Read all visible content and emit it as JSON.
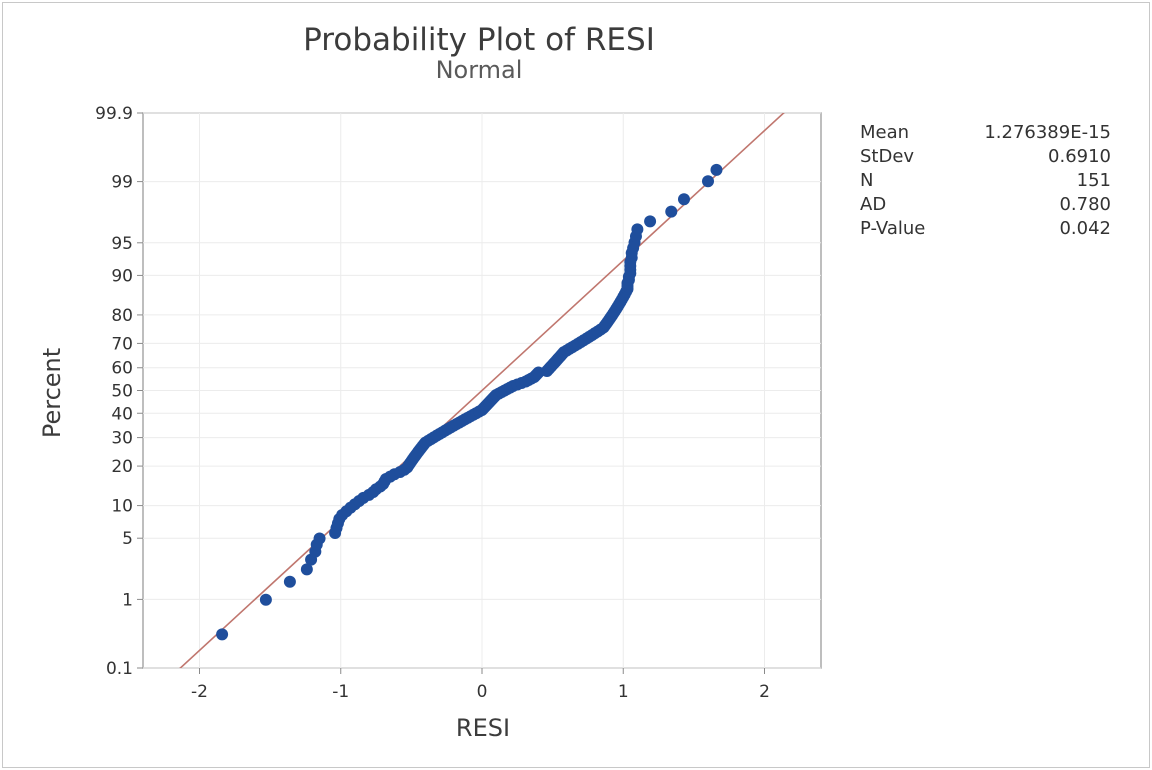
{
  "chart_data": {
    "type": "scatter",
    "title": "Probability Plot of RESI",
    "subtitle": "Normal",
    "xlabel": "RESI",
    "ylabel": "Percent",
    "xlim": [
      -2.4,
      2.4
    ],
    "x_ticks": [
      -2,
      -1,
      0,
      1,
      2
    ],
    "y_scale": "normal-probability",
    "y_ticks": [
      0.1,
      1,
      5,
      10,
      20,
      30,
      40,
      50,
      60,
      70,
      80,
      90,
      95,
      99,
      99.9
    ],
    "ylim": [
      0.1,
      99.9
    ],
    "grid": true,
    "fit_line": {
      "mean": 0.0,
      "stdev": 0.691
    },
    "point_color": "#1f4e9c",
    "line_color": "#c0766e",
    "points": [
      [
        -1.84,
        0.33
      ],
      [
        -1.53,
        0.99
      ],
      [
        -1.36,
        1.66
      ],
      [
        -1.24,
        2.32
      ],
      [
        -1.21,
        2.98
      ],
      [
        -1.18,
        3.64
      ],
      [
        -1.17,
        4.3
      ],
      [
        -1.15,
        4.97
      ],
      [
        -1.04,
        5.63
      ],
      [
        -1.03,
        6.29
      ],
      [
        -1.02,
        6.95
      ],
      [
        -1.01,
        7.62
      ],
      [
        -0.99,
        8.28
      ],
      [
        -0.96,
        8.94
      ],
      [
        -0.93,
        9.6
      ],
      [
        -0.9,
        10.26
      ],
      [
        -0.87,
        10.93
      ],
      [
        -0.84,
        11.59
      ],
      [
        -0.8,
        12.25
      ],
      [
        -0.77,
        12.91
      ],
      [
        -0.75,
        13.58
      ],
      [
        -0.72,
        14.24
      ],
      [
        -0.7,
        14.9
      ],
      [
        -0.69,
        15.56
      ],
      [
        -0.68,
        16.23
      ],
      [
        -0.65,
        16.89
      ],
      [
        -0.62,
        17.55
      ],
      [
        -0.58,
        18.21
      ],
      [
        -0.55,
        18.87
      ],
      [
        -0.53,
        19.54
      ],
      [
        -0.52,
        20.2
      ],
      [
        -0.51,
        20.86
      ],
      [
        -0.5,
        21.52
      ],
      [
        -0.49,
        22.19
      ],
      [
        -0.48,
        22.85
      ],
      [
        -0.47,
        23.51
      ],
      [
        -0.46,
        24.17
      ],
      [
        -0.45,
        24.83
      ],
      [
        -0.44,
        25.5
      ],
      [
        -0.43,
        26.16
      ],
      [
        -0.42,
        26.82
      ],
      [
        -0.41,
        27.48
      ],
      [
        -0.4,
        28.15
      ],
      [
        -0.38,
        28.81
      ],
      [
        -0.36,
        29.47
      ],
      [
        -0.34,
        30.13
      ],
      [
        -0.32,
        30.79
      ],
      [
        -0.3,
        31.46
      ],
      [
        -0.28,
        32.12
      ],
      [
        -0.26,
        32.78
      ],
      [
        -0.24,
        33.44
      ],
      [
        -0.22,
        34.11
      ],
      [
        -0.2,
        34.77
      ],
      [
        -0.18,
        35.43
      ],
      [
        -0.16,
        36.09
      ],
      [
        -0.14,
        36.75
      ],
      [
        -0.12,
        37.42
      ],
      [
        -0.1,
        38.08
      ],
      [
        -0.08,
        38.74
      ],
      [
        -0.06,
        39.4
      ],
      [
        -0.04,
        40.07
      ],
      [
        -0.02,
        40.73
      ],
      [
        0.0,
        41.39
      ],
      [
        0.01,
        42.05
      ],
      [
        0.02,
        42.72
      ],
      [
        0.03,
        43.38
      ],
      [
        0.04,
        44.04
      ],
      [
        0.05,
        44.7
      ],
      [
        0.06,
        45.36
      ],
      [
        0.07,
        46.03
      ],
      [
        0.08,
        46.69
      ],
      [
        0.09,
        47.35
      ],
      [
        0.1,
        48.01
      ],
      [
        0.12,
        48.68
      ],
      [
        0.14,
        49.34
      ],
      [
        0.16,
        50.0
      ],
      [
        0.18,
        50.66
      ],
      [
        0.2,
        51.32
      ],
      [
        0.22,
        51.99
      ],
      [
        0.25,
        52.65
      ],
      [
        0.28,
        53.31
      ],
      [
        0.31,
        53.97
      ],
      [
        0.33,
        54.64
      ],
      [
        0.35,
        55.3
      ],
      [
        0.37,
        55.96
      ],
      [
        0.38,
        56.62
      ],
      [
        0.39,
        57.28
      ],
      [
        0.4,
        57.95
      ],
      [
        0.46,
        58.61
      ],
      [
        0.47,
        59.27
      ],
      [
        0.48,
        59.93
      ],
      [
        0.49,
        60.6
      ],
      [
        0.5,
        61.26
      ],
      [
        0.51,
        61.92
      ],
      [
        0.52,
        62.58
      ],
      [
        0.53,
        63.25
      ],
      [
        0.54,
        63.91
      ],
      [
        0.55,
        64.57
      ],
      [
        0.56,
        65.23
      ],
      [
        0.57,
        65.89
      ],
      [
        0.58,
        66.56
      ],
      [
        0.6,
        67.22
      ],
      [
        0.62,
        67.88
      ],
      [
        0.64,
        68.54
      ],
      [
        0.66,
        69.21
      ],
      [
        0.68,
        69.87
      ],
      [
        0.7,
        70.53
      ],
      [
        0.72,
        71.19
      ],
      [
        0.74,
        71.85
      ],
      [
        0.76,
        72.52
      ],
      [
        0.78,
        73.18
      ],
      [
        0.8,
        73.84
      ],
      [
        0.82,
        74.5
      ],
      [
        0.84,
        75.17
      ],
      [
        0.86,
        75.83
      ],
      [
        0.87,
        76.49
      ],
      [
        0.88,
        77.15
      ],
      [
        0.89,
        77.81
      ],
      [
        0.9,
        78.48
      ],
      [
        0.91,
        79.14
      ],
      [
        0.92,
        79.8
      ],
      [
        0.93,
        80.46
      ],
      [
        0.94,
        81.13
      ],
      [
        0.95,
        81.79
      ],
      [
        0.96,
        82.45
      ],
      [
        0.97,
        83.11
      ],
      [
        0.98,
        83.77
      ],
      [
        0.99,
        84.44
      ],
      [
        1.0,
        85.1
      ],
      [
        1.01,
        85.76
      ],
      [
        1.02,
        86.42
      ],
      [
        1.03,
        87.09
      ],
      [
        1.03,
        87.75
      ],
      [
        1.03,
        88.41
      ],
      [
        1.04,
        89.07
      ],
      [
        1.04,
        89.74
      ],
      [
        1.05,
        90.4
      ],
      [
        1.05,
        91.06
      ],
      [
        1.05,
        91.72
      ],
      [
        1.05,
        92.38
      ],
      [
        1.06,
        93.05
      ],
      [
        1.06,
        93.71
      ],
      [
        1.07,
        94.37
      ],
      [
        1.08,
        95.03
      ],
      [
        1.09,
        95.7
      ],
      [
        1.1,
        96.36
      ],
      [
        1.19,
        97.02
      ],
      [
        1.34,
        97.68
      ],
      [
        1.43,
        98.34
      ],
      [
        1.6,
        99.01
      ],
      [
        1.66,
        99.3
      ]
    ]
  },
  "stats": [
    {
      "label": "Mean",
      "value": "1.276389E-15"
    },
    {
      "label": "StDev",
      "value": "0.6910"
    },
    {
      "label": "N",
      "value": "151"
    },
    {
      "label": "AD",
      "value": "0.780"
    },
    {
      "label": "P-Value",
      "value": "0.042"
    }
  ]
}
